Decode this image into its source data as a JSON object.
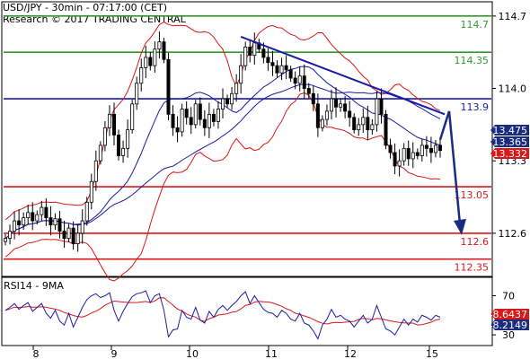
{
  "header": {
    "line1": "USD/JPY - 30min - 07:17:00 (CET)",
    "line2": "Research © 2017 TRADING CENTRAL"
  },
  "colors": {
    "resistance_green": "#2e9a2e",
    "pivot_blue": "#1a1aa6",
    "support_red": "#d81818",
    "candle": "#000000",
    "bollinger": "#d81818",
    "ma_fast": "#1a1aa6",
    "ma_slow": "#1a1aa6",
    "trendline": "#1a1aa6",
    "arrow": "#1a2c80",
    "rsi_line": "#1a1aa6",
    "rsi_ma": "#d81818",
    "price_tag_dark": "#1a2c80",
    "price_tag_red": "#d81818"
  },
  "chart_data": [
    {
      "type": "candlestick",
      "panel": "price",
      "y_range": [
        112.2,
        114.82
      ],
      "y_ticks": [
        "114.7",
        "114.0",
        "113.3",
        "112.6"
      ],
      "x_ticks": [
        "8",
        "9",
        "10",
        "11",
        "12",
        "15"
      ],
      "levels": [
        {
          "value": 114.7,
          "label": "114.7",
          "color": "green"
        },
        {
          "value": 114.35,
          "label": "114.35",
          "color": "green"
        },
        {
          "value": 113.9,
          "label": "113.9",
          "color": "blue"
        },
        {
          "value": 113.05,
          "label": "113.05",
          "color": "red"
        },
        {
          "value": 112.6,
          "label": "112.6",
          "color": "red"
        },
        {
          "value": 112.35,
          "label": "112.35",
          "color": "red"
        }
      ],
      "price_tags": [
        {
          "value": 113.475,
          "label": "113.475",
          "color": "dark"
        },
        {
          "value": 113.365,
          "label": "113.365",
          "color": "dark"
        },
        {
          "value": 113.332,
          "label": "113.332",
          "color": "red"
        }
      ],
      "close_series": [
        112.55,
        112.62,
        112.72,
        112.68,
        112.75,
        112.8,
        112.72,
        112.78,
        112.85,
        112.75,
        112.68,
        112.74,
        112.62,
        112.55,
        112.65,
        112.5,
        112.6,
        112.72,
        112.9,
        113.1,
        113.3,
        113.45,
        113.62,
        113.75,
        113.55,
        113.35,
        113.42,
        113.6,
        113.85,
        114.05,
        114.2,
        114.3,
        114.22,
        114.38,
        114.45,
        114.28,
        113.75,
        113.62,
        113.58,
        113.8,
        113.72,
        113.65,
        113.85,
        113.7,
        113.62,
        113.75,
        113.68,
        113.8,
        113.9,
        113.85,
        113.95,
        114.05,
        114.22,
        114.4,
        114.32,
        114.44,
        114.38,
        114.3,
        114.25,
        114.22,
        114.15,
        114.22,
        114.18,
        114.1,
        114.05,
        114.12,
        114.0,
        113.95,
        113.85,
        113.62,
        113.7,
        113.78,
        113.9,
        113.82,
        113.85,
        113.78,
        113.72,
        113.6,
        113.65,
        113.72,
        113.6,
        113.65,
        113.9,
        113.75,
        113.45,
        113.38,
        113.25,
        113.3,
        113.42,
        113.32,
        113.38,
        113.35,
        113.45,
        113.42,
        113.38,
        113.45,
        113.4
      ],
      "trendline": {
        "start": [
          113,
          114.5
        ],
        "end": [
          113.4,
          113.75
        ]
      },
      "forecast_arrow": {
        "from": 113.78,
        "to": 112.6
      },
      "indicators": [
        "Bollinger Bands",
        "Moving Average (fast)",
        "Moving Average (slow)"
      ]
    },
    {
      "type": "line",
      "panel": "rsi",
      "title": "RSI14 - 9MA",
      "y_range": [
        20,
        86
      ],
      "y_ticks": [
        "70",
        "30"
      ],
      "series": [
        {
          "name": "RSI14",
          "color": "blue",
          "last_label": "48.2149"
        },
        {
          "name": "9MA",
          "color": "red",
          "last_label": "48.6437"
        }
      ],
      "rsi_values": [
        55,
        58,
        62,
        56,
        60,
        63,
        54,
        58,
        62,
        52,
        47,
        55,
        44,
        40,
        52,
        38,
        48,
        58,
        66,
        70,
        72,
        68,
        70,
        73,
        55,
        44,
        54,
        62,
        69,
        72,
        73,
        75,
        63,
        70,
        72,
        55,
        28,
        35,
        36,
        55,
        48,
        46,
        58,
        45,
        42,
        54,
        48,
        56,
        60,
        55,
        60,
        64,
        70,
        74,
        62,
        70,
        63,
        56,
        53,
        52,
        48,
        55,
        52,
        46,
        44,
        52,
        42,
        40,
        34,
        26,
        40,
        46,
        56,
        48,
        50,
        46,
        44,
        38,
        44,
        50,
        42,
        46,
        60,
        48,
        36,
        34,
        30,
        38,
        46,
        40,
        46,
        43,
        50,
        48,
        45,
        50,
        48
      ]
    }
  ]
}
